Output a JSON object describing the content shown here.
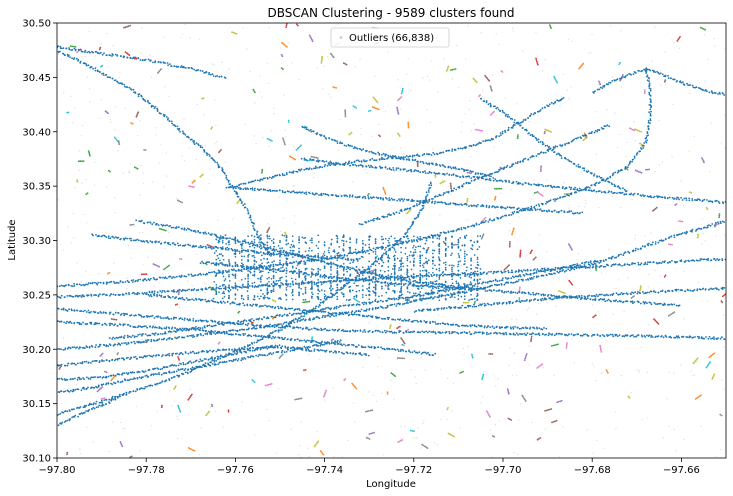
{
  "chart_data": {
    "type": "scatter",
    "title": "DBSCAN Clustering - 9589 clusters found",
    "xlabel": "Longitude",
    "ylabel": "Latitude",
    "xlim": [
      -97.8,
      -97.65
    ],
    "ylim": [
      30.1,
      30.5
    ],
    "x_ticks": [
      -97.8,
      -97.78,
      -97.76,
      -97.74,
      -97.72,
      -97.7,
      -97.68,
      -97.66
    ],
    "x_tick_labels": [
      "−97.80",
      "−97.78",
      "−97.76",
      "−97.74",
      "−97.72",
      "−97.70",
      "−97.68",
      "−97.66"
    ],
    "y_ticks": [
      30.1,
      30.15,
      30.2,
      30.25,
      30.3,
      30.35,
      30.4,
      30.45,
      30.5
    ],
    "y_tick_labels": [
      "30.10",
      "30.15",
      "30.20",
      "30.25",
      "30.30",
      "30.35",
      "30.40",
      "30.45",
      "30.50"
    ],
    "grid": false,
    "legend": {
      "placement": "upper center",
      "entries": [
        {
          "label": "Outliers (66,838)",
          "color": "#d3d3d3"
        }
      ]
    },
    "main_cluster_color": "#1f77b4",
    "cluster_palette": [
      "#ff7f0e",
      "#2ca02c",
      "#d62728",
      "#9467bd",
      "#8c564b",
      "#e377c2",
      "#7f7f7f",
      "#bcbd22",
      "#17becf"
    ],
    "outlier_color": "#d3d3d3",
    "road_segments": [
      [
        [
          -97.8,
          30.478
        ],
        [
          -97.79,
          30.472
        ],
        [
          -97.78,
          30.466
        ],
        [
          -97.77,
          30.458
        ],
        [
          -97.762,
          30.449
        ]
      ],
      [
        [
          -97.8,
          30.475
        ],
        [
          -97.794,
          30.463
        ],
        [
          -97.788,
          30.45
        ],
        [
          -97.782,
          30.435
        ],
        [
          -97.777,
          30.418
        ],
        [
          -97.772,
          30.4
        ],
        [
          -97.767,
          30.383
        ],
        [
          -97.763,
          30.365
        ],
        [
          -97.76,
          30.345
        ],
        [
          -97.757,
          30.325
        ],
        [
          -97.755,
          30.305
        ],
        [
          -97.752,
          30.285
        ]
      ],
      [
        [
          -97.8,
          30.258
        ],
        [
          -97.785,
          30.262
        ],
        [
          -97.77,
          30.268
        ],
        [
          -97.755,
          30.275
        ],
        [
          -97.74,
          30.283
        ],
        [
          -97.73,
          30.291
        ],
        [
          -97.72,
          30.3
        ],
        [
          -97.71,
          30.31
        ],
        [
          -97.7,
          30.322
        ],
        [
          -97.69,
          30.335
        ],
        [
          -97.68,
          30.35
        ],
        [
          -97.672,
          30.368
        ],
        [
          -97.668,
          30.39
        ],
        [
          -97.667,
          30.415
        ],
        [
          -97.667,
          30.44
        ],
        [
          -97.668,
          30.46
        ]
      ],
      [
        [
          -97.8,
          30.237
        ],
        [
          -97.785,
          30.232
        ],
        [
          -97.77,
          30.227
        ],
        [
          -97.755,
          30.222
        ],
        [
          -97.74,
          30.218
        ],
        [
          -97.725,
          30.216
        ],
        [
          -97.71,
          30.215
        ],
        [
          -97.695,
          30.214
        ],
        [
          -97.68,
          30.213
        ],
        [
          -97.665,
          30.212
        ],
        [
          -97.65,
          30.21
        ]
      ],
      [
        [
          -97.8,
          30.225
        ],
        [
          -97.785,
          30.222
        ],
        [
          -97.77,
          30.218
        ],
        [
          -97.755,
          30.212
        ],
        [
          -97.74,
          30.206
        ],
        [
          -97.725,
          30.2
        ],
        [
          -97.715,
          30.195
        ]
      ],
      [
        [
          -97.8,
          30.172
        ],
        [
          -97.79,
          30.174
        ],
        [
          -97.78,
          30.18
        ],
        [
          -97.77,
          30.188
        ],
        [
          -97.76,
          30.196
        ],
        [
          -97.75,
          30.204
        ]
      ],
      [
        [
          -97.8,
          30.14
        ],
        [
          -97.79,
          30.152
        ],
        [
          -97.78,
          30.165
        ],
        [
          -97.77,
          30.18
        ],
        [
          -97.76,
          30.198
        ],
        [
          -97.75,
          30.218
        ],
        [
          -97.742,
          30.238
        ],
        [
          -97.735,
          30.26
        ],
        [
          -97.728,
          30.282
        ],
        [
          -97.722,
          30.305
        ],
        [
          -97.718,
          30.33
        ],
        [
          -97.716,
          30.355
        ]
      ],
      [
        [
          -97.8,
          30.2
        ],
        [
          -97.785,
          30.205
        ],
        [
          -97.77,
          30.212
        ],
        [
          -97.755,
          30.22
        ],
        [
          -97.74,
          30.23
        ],
        [
          -97.725,
          30.24
        ],
        [
          -97.71,
          30.252
        ],
        [
          -97.695,
          30.264
        ],
        [
          -97.68,
          30.278
        ],
        [
          -97.67,
          30.292
        ],
        [
          -97.66,
          30.306
        ],
        [
          -97.65,
          30.318
        ]
      ],
      [
        [
          -97.8,
          30.185
        ],
        [
          -97.79,
          30.189
        ],
        [
          -97.78,
          30.193
        ],
        [
          -97.77,
          30.197
        ],
        [
          -97.76,
          30.2
        ],
        [
          -97.75,
          30.202
        ],
        [
          -97.74,
          30.198
        ],
        [
          -97.73,
          30.195
        ]
      ],
      [
        [
          -97.745,
          30.375
        ],
        [
          -97.735,
          30.37
        ],
        [
          -97.725,
          30.366
        ],
        [
          -97.715,
          30.362
        ],
        [
          -97.705,
          30.357
        ],
        [
          -97.695,
          30.352
        ],
        [
          -97.685,
          30.348
        ],
        [
          -97.675,
          30.344
        ],
        [
          -97.665,
          30.34
        ],
        [
          -97.65,
          30.335
        ]
      ],
      [
        [
          -97.782,
          30.318
        ],
        [
          -97.77,
          30.31
        ],
        [
          -97.76,
          30.3
        ],
        [
          -97.75,
          30.29
        ],
        [
          -97.74,
          30.28
        ],
        [
          -97.73,
          30.27
        ],
        [
          -97.72,
          30.262
        ],
        [
          -97.71,
          30.257
        ],
        [
          -97.7,
          30.253
        ],
        [
          -97.69,
          30.25
        ],
        [
          -97.68,
          30.246
        ],
        [
          -97.67,
          30.243
        ],
        [
          -97.66,
          30.24
        ]
      ],
      [
        [
          -97.768,
          30.28
        ],
        [
          -97.758,
          30.276
        ],
        [
          -97.748,
          30.272
        ],
        [
          -97.738,
          30.266
        ],
        [
          -97.728,
          30.262
        ],
        [
          -97.718,
          30.258
        ],
        [
          -97.708,
          30.255
        ]
      ],
      [
        [
          -97.792,
          30.305
        ],
        [
          -97.782,
          30.3
        ],
        [
          -97.772,
          30.296
        ],
        [
          -97.762,
          30.292
        ],
        [
          -97.752,
          30.288
        ],
        [
          -97.742,
          30.285
        ],
        [
          -97.732,
          30.282
        ]
      ],
      [
        [
          -97.68,
          30.436
        ],
        [
          -97.676,
          30.445
        ],
        [
          -97.672,
          30.452
        ],
        [
          -97.668,
          30.458
        ],
        [
          -97.664,
          30.452
        ],
        [
          -97.66,
          30.445
        ],
        [
          -97.655,
          30.438
        ],
        [
          -97.65,
          30.434
        ]
      ],
      [
        [
          -97.705,
          30.43
        ],
        [
          -97.7,
          30.418
        ],
        [
          -97.696,
          30.405
        ],
        [
          -97.692,
          30.392
        ],
        [
          -97.688,
          30.38
        ],
        [
          -97.683,
          30.368
        ],
        [
          -97.678,
          30.357
        ],
        [
          -97.672,
          30.345
        ]
      ],
      [
        [
          -97.8,
          30.248
        ],
        [
          -97.788,
          30.25
        ],
        [
          -97.776,
          30.253
        ],
        [
          -97.764,
          30.256
        ],
        [
          -97.752,
          30.259
        ],
        [
          -97.74,
          30.262
        ],
        [
          -97.728,
          30.265
        ],
        [
          -97.716,
          30.268
        ],
        [
          -97.704,
          30.27
        ],
        [
          -97.692,
          30.273
        ],
        [
          -97.68,
          30.276
        ],
        [
          -97.668,
          30.279
        ],
        [
          -97.656,
          30.282
        ],
        [
          -97.65,
          30.283
        ]
      ],
      [
        [
          -97.76,
          30.35
        ],
        [
          -97.752,
          30.358
        ],
        [
          -97.745,
          30.365
        ],
        [
          -97.738,
          30.37
        ],
        [
          -97.73,
          30.374
        ],
        [
          -97.722,
          30.377
        ],
        [
          -97.715,
          30.38
        ],
        [
          -97.708,
          30.386
        ],
        [
          -97.702,
          30.394
        ],
        [
          -97.698,
          30.404
        ],
        [
          -97.694,
          30.414
        ],
        [
          -97.69,
          30.424
        ],
        [
          -97.686,
          30.432
        ]
      ],
      [
        [
          -97.788,
          30.21
        ],
        [
          -97.778,
          30.214
        ],
        [
          -97.768,
          30.22
        ],
        [
          -97.758,
          30.226
        ],
        [
          -97.748,
          30.232
        ],
        [
          -97.738,
          30.238
        ],
        [
          -97.728,
          30.244
        ],
        [
          -97.718,
          30.25
        ],
        [
          -97.708,
          30.258
        ],
        [
          -97.698,
          30.266
        ],
        [
          -97.688,
          30.274
        ],
        [
          -97.678,
          30.282
        ]
      ],
      [
        [
          -97.732,
          30.315
        ],
        [
          -97.724,
          30.325
        ],
        [
          -97.718,
          30.335
        ],
        [
          -97.712,
          30.345
        ],
        [
          -97.706,
          30.356
        ],
        [
          -97.7,
          30.366
        ],
        [
          -97.694,
          30.376
        ],
        [
          -97.688,
          30.386
        ],
        [
          -97.682,
          30.396
        ],
        [
          -97.676,
          30.406
        ]
      ],
      [
        [
          -97.78,
          30.25
        ],
        [
          -97.77,
          30.246
        ],
        [
          -97.76,
          30.242
        ],
        [
          -97.75,
          30.238
        ],
        [
          -97.74,
          30.234
        ],
        [
          -97.73,
          30.23
        ],
        [
          -97.72,
          30.226
        ],
        [
          -97.71,
          30.222
        ],
        [
          -97.7,
          30.22
        ],
        [
          -97.69,
          30.219
        ]
      ],
      [
        [
          -97.762,
          30.349
        ],
        [
          -97.752,
          30.346
        ],
        [
          -97.742,
          30.343
        ],
        [
          -97.732,
          30.34
        ],
        [
          -97.722,
          30.337
        ],
        [
          -97.712,
          30.334
        ],
        [
          -97.702,
          30.331
        ],
        [
          -97.692,
          30.328
        ],
        [
          -97.682,
          30.325
        ]
      ],
      [
        [
          -97.745,
          30.405
        ],
        [
          -97.74,
          30.395
        ],
        [
          -97.734,
          30.386
        ],
        [
          -97.726,
          30.378
        ],
        [
          -97.718,
          30.372
        ],
        [
          -97.71,
          30.366
        ],
        [
          -97.702,
          30.358
        ]
      ],
      [
        [
          -97.8,
          30.16
        ],
        [
          -97.792,
          30.165
        ],
        [
          -97.784,
          30.172
        ],
        [
          -97.776,
          30.178
        ],
        [
          -97.768,
          30.184
        ],
        [
          -97.76,
          30.19
        ],
        [
          -97.752,
          30.196
        ],
        [
          -97.744,
          30.202
        ],
        [
          -97.736,
          30.208
        ]
      ],
      [
        [
          -97.8,
          30.13
        ],
        [
          -97.796,
          30.138
        ],
        [
          -97.792,
          30.145
        ],
        [
          -97.788,
          30.152
        ],
        [
          -97.784,
          30.16
        ]
      ],
      [
        [
          -97.72,
          30.235
        ],
        [
          -97.712,
          30.238
        ],
        [
          -97.704,
          30.241
        ],
        [
          -97.696,
          30.244
        ],
        [
          -97.688,
          30.247
        ],
        [
          -97.68,
          30.249
        ],
        [
          -97.67,
          30.252
        ],
        [
          -97.66,
          30.254
        ],
        [
          -97.65,
          30.256
        ]
      ]
    ]
  }
}
